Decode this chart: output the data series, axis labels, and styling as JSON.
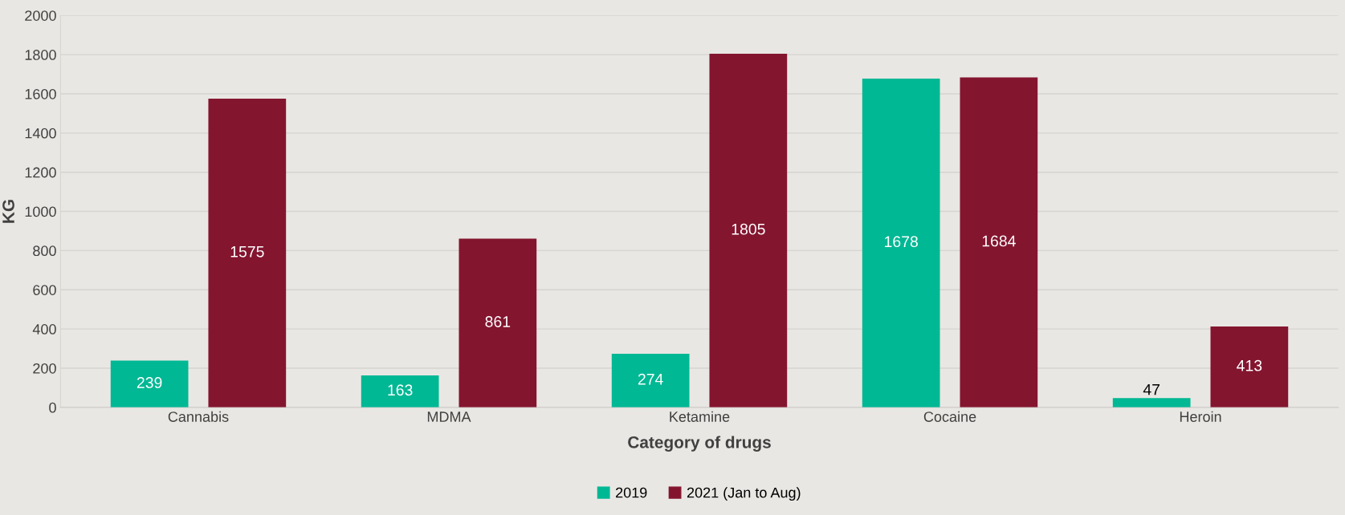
{
  "chart_data": {
    "type": "bar",
    "categories": [
      "Cannabis",
      "MDMA",
      "Ketamine",
      "Cocaine",
      "Heroin"
    ],
    "series": [
      {
        "name": "2019",
        "color": "#00b894",
        "values": [
          239,
          163,
          274,
          1678,
          47
        ]
      },
      {
        "name": "2021 (Jan to Aug)",
        "color": "#84152f",
        "values": [
          1575,
          861,
          1805,
          1684,
          413
        ]
      }
    ],
    "xlabel": "Category of drugs",
    "ylabel": "KG",
    "ylim": [
      0,
      2000
    ],
    "yticks": [
      0,
      200,
      400,
      600,
      800,
      1000,
      1200,
      1400,
      1600,
      1800,
      2000
    ],
    "grid": "y",
    "legend": "bottom",
    "data_labels": true
  }
}
